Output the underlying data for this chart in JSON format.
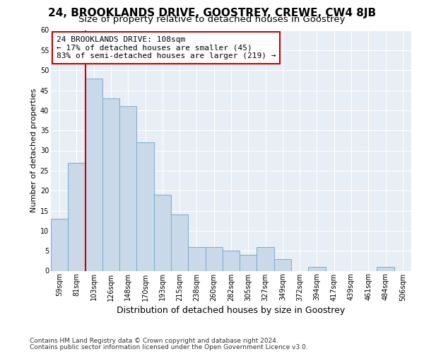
{
  "title": "24, BROOKLANDS DRIVE, GOOSTREY, CREWE, CW4 8JB",
  "subtitle": "Size of property relative to detached houses in Goostrey",
  "xlabel": "Distribution of detached houses by size in Goostrey",
  "ylabel": "Number of detached properties",
  "categories": [
    "59sqm",
    "81sqm",
    "103sqm",
    "126sqm",
    "148sqm",
    "170sqm",
    "193sqm",
    "215sqm",
    "238sqm",
    "260sqm",
    "282sqm",
    "305sqm",
    "327sqm",
    "349sqm",
    "372sqm",
    "394sqm",
    "417sqm",
    "439sqm",
    "461sqm",
    "484sqm",
    "506sqm"
  ],
  "values": [
    13,
    27,
    48,
    43,
    41,
    32,
    19,
    14,
    6,
    6,
    5,
    4,
    6,
    3,
    0,
    1,
    0,
    0,
    0,
    1,
    0
  ],
  "bar_color": "#c9d9ea",
  "bar_edge_color": "#7aaac8",
  "highlight_index": 2,
  "highlight_line_color": "#cc0000",
  "ylim": [
    0,
    60
  ],
  "yticks": [
    0,
    5,
    10,
    15,
    20,
    25,
    30,
    35,
    40,
    45,
    50,
    55,
    60
  ],
  "annotation_box_text": "24 BROOKLANDS DRIVE: 108sqm\n← 17% of detached houses are smaller (45)\n83% of semi-detached houses are larger (219) →",
  "annotation_box_color": "#ffffff",
  "annotation_box_edge_color": "#cc0000",
  "footnote1": "Contains HM Land Registry data © Crown copyright and database right 2024.",
  "footnote2": "Contains public sector information licensed under the Open Government Licence v3.0.",
  "fig_background_color": "#ffffff",
  "plot_background_color": "#e8eef5",
  "grid_color": "#ffffff",
  "title_fontsize": 11,
  "subtitle_fontsize": 9.5
}
